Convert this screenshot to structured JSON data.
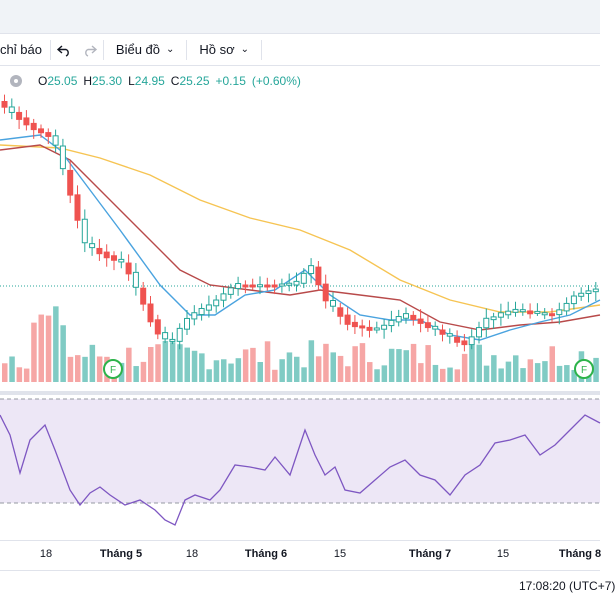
{
  "toolbar": {
    "indicators_label": "chỉ báo",
    "undo_icon": "undo-icon",
    "redo_icon": "redo-icon",
    "chart_type_label": "Biểu đồ",
    "profile_label": "Hồ sơ"
  },
  "legend": {
    "open_label": "O",
    "open": "25.05",
    "high_label": "H",
    "high": "25.30",
    "low_label": "L",
    "low": "24.95",
    "close_label": "C",
    "close": "25.25",
    "change": "+0.15",
    "change_pct": "(+0.60%)"
  },
  "colors": {
    "up": "#26a69a",
    "down": "#ef5350",
    "vol_up": "#80cbc4",
    "vol_down": "#f6a6a5",
    "ma_fast": "#4aa3df",
    "ma_mid": "#b84a4a",
    "ma_slow": "#f6c453",
    "rsi_line": "#7e57c2",
    "rsi_band": "#ede7f6"
  },
  "time_axis": {
    "ticks": [
      {
        "label": "18",
        "strong": false
      },
      {
        "label": "Tháng 5",
        "strong": true
      },
      {
        "label": "18",
        "strong": false
      },
      {
        "label": "Tháng 6",
        "strong": true
      },
      {
        "label": "15",
        "strong": false
      },
      {
        "label": "Tháng 7",
        "strong": true
      },
      {
        "label": "15",
        "strong": false
      },
      {
        "label": "Tháng 8",
        "strong": true
      }
    ]
  },
  "markers": [
    {
      "label": "F"
    },
    {
      "label": "F"
    }
  ],
  "status": {
    "clock": "17:08:20 (UTC+7)"
  }
}
